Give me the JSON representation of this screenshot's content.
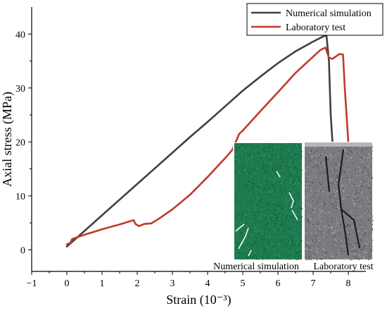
{
  "chart_data": {
    "type": "line",
    "title": "",
    "xlabel": "Strain (10⁻³)",
    "ylabel": "Axial stress (MPa)",
    "xlim": [
      -1,
      8.5
    ],
    "ylim": [
      -4,
      45
    ],
    "x_ticks": [
      -1,
      0,
      1,
      2,
      3,
      4,
      5,
      6,
      7,
      8
    ],
    "y_ticks": [
      0,
      10,
      20,
      30,
      40
    ],
    "grid": false,
    "legend_position": "top-right",
    "series": [
      {
        "name": "Numerical simulation",
        "color": "#404040",
        "points": [
          [
            0.0,
            0.6
          ],
          [
            0.5,
            3.5
          ],
          [
            1.0,
            6.4
          ],
          [
            1.5,
            9.3
          ],
          [
            2.0,
            12.2
          ],
          [
            2.5,
            15.1
          ],
          [
            3.0,
            18.0
          ],
          [
            3.5,
            20.9
          ],
          [
            4.0,
            23.7
          ],
          [
            4.5,
            26.6
          ],
          [
            5.0,
            29.5
          ],
          [
            5.5,
            32.1
          ],
          [
            6.0,
            34.6
          ],
          [
            6.5,
            36.8
          ],
          [
            7.0,
            38.6
          ],
          [
            7.3,
            39.6
          ],
          [
            7.38,
            39.7
          ],
          [
            7.45,
            35.0
          ],
          [
            7.5,
            25.0
          ],
          [
            7.55,
            20.0
          ]
        ]
      },
      {
        "name": "Laboratory test",
        "color": "#c0392b",
        "points": [
          [
            0.0,
            1.0
          ],
          [
            0.1,
            1.3
          ],
          [
            0.15,
            2.0
          ],
          [
            0.5,
            2.8
          ],
          [
            1.0,
            3.8
          ],
          [
            1.5,
            4.7
          ],
          [
            1.9,
            5.5
          ],
          [
            1.95,
            4.8
          ],
          [
            2.05,
            4.4
          ],
          [
            2.2,
            4.8
          ],
          [
            2.4,
            4.9
          ],
          [
            2.6,
            5.7
          ],
          [
            3.0,
            7.5
          ],
          [
            3.5,
            10.2
          ],
          [
            4.0,
            13.5
          ],
          [
            4.5,
            17.0
          ],
          [
            4.7,
            18.5
          ],
          [
            4.8,
            20.0
          ],
          [
            4.9,
            21.5
          ],
          [
            5.0,
            22.1
          ],
          [
            5.5,
            25.7
          ],
          [
            6.0,
            29.2
          ],
          [
            6.5,
            32.8
          ],
          [
            7.0,
            35.8
          ],
          [
            7.2,
            37.0
          ],
          [
            7.35,
            37.5
          ],
          [
            7.45,
            35.6
          ],
          [
            7.55,
            35.4
          ],
          [
            7.75,
            36.3
          ],
          [
            7.85,
            36.2
          ],
          [
            7.9,
            30.0
          ],
          [
            7.95,
            25.0
          ],
          [
            8.0,
            20.0
          ]
        ]
      }
    ],
    "insets": [
      {
        "label": "Numerical simulation",
        "base_color": "#1e7a4e",
        "crack_color": "#ffffff"
      },
      {
        "label": "Laboratory test",
        "base_color": "#7a7b80",
        "crack_color": "#1c1c22"
      }
    ]
  }
}
